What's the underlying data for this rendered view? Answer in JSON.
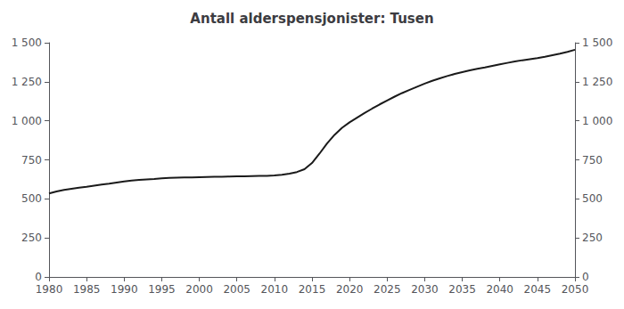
{
  "chart_data": {
    "type": "line",
    "title": "Antall alderspensjonister: Tusen",
    "x": [
      1980,
      1981,
      1982,
      1983,
      1984,
      1985,
      1986,
      1987,
      1988,
      1989,
      1990,
      1991,
      1992,
      1993,
      1994,
      1995,
      1996,
      1997,
      1998,
      1999,
      2000,
      2001,
      2002,
      2003,
      2004,
      2005,
      2006,
      2007,
      2008,
      2009,
      2010,
      2011,
      2012,
      2013,
      2014,
      2015,
      2016,
      2017,
      2018,
      2019,
      2020,
      2021,
      2022,
      2023,
      2024,
      2025,
      2026,
      2027,
      2028,
      2029,
      2030,
      2031,
      2032,
      2033,
      2034,
      2035,
      2036,
      2037,
      2038,
      2039,
      2040,
      2041,
      2042,
      2043,
      2044,
      2045,
      2046,
      2047,
      2048,
      2049,
      2050
    ],
    "values": [
      535,
      548,
      558,
      565,
      572,
      578,
      585,
      592,
      598,
      605,
      612,
      618,
      622,
      625,
      628,
      632,
      634,
      636,
      637,
      638,
      639,
      640,
      641,
      642,
      643,
      644,
      645,
      646,
      647,
      648,
      650,
      655,
      662,
      672,
      690,
      730,
      790,
      855,
      910,
      955,
      990,
      1020,
      1050,
      1078,
      1105,
      1130,
      1155,
      1178,
      1198,
      1218,
      1238,
      1256,
      1272,
      1287,
      1300,
      1312,
      1323,
      1333,
      1342,
      1352,
      1362,
      1371,
      1380,
      1388,
      1395,
      1402,
      1410,
      1420,
      1430,
      1442,
      1455
    ],
    "color": "#1a1a1a",
    "xlim": [
      1980,
      2050
    ],
    "xticks": [
      1980,
      1985,
      1990,
      1995,
      2000,
      2005,
      2010,
      2015,
      2020,
      2025,
      2030,
      2035,
      2040,
      2045,
      2050
    ],
    "ylim": [
      0,
      1500
    ],
    "yticks": [
      0,
      250,
      500,
      750,
      {
        "value": 1000,
        "label": "1 000"
      },
      {
        "value": 1250,
        "label": "1 250"
      },
      {
        "value": 1500,
        "label": "1 500"
      }
    ],
    "y2lim": [
      0,
      1500
    ],
    "y2ticks": [
      0,
      250,
      500,
      750,
      {
        "value": 1000,
        "label": "1 000"
      },
      {
        "value": 1250,
        "label": "1 250"
      },
      {
        "value": 1500,
        "label": "1 500"
      }
    ],
    "grid": false
  }
}
